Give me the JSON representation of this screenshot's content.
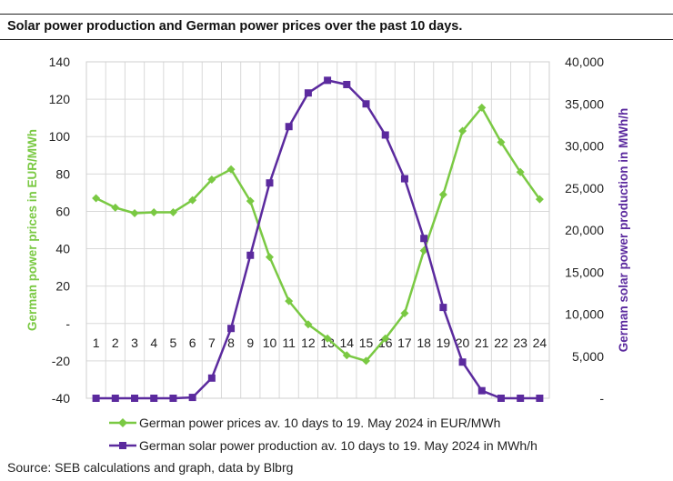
{
  "title": "Solar power production and German power prices over the past 10 days.",
  "source": "Source:  SEB calculations and graph, data by Blbrg",
  "colors": {
    "price": "#7ac943",
    "solar": "#5b2a9e",
    "grid": "#d9d9d9"
  },
  "chart_data": {
    "type": "line",
    "title": "Solar power production and German power prices over the past 10 days.",
    "categories": [
      "1",
      "2",
      "3",
      "4",
      "5",
      "6",
      "7",
      "8",
      "9",
      "10",
      "11",
      "12",
      "13",
      "14",
      "15",
      "16",
      "17",
      "18",
      "19",
      "20",
      "21",
      "22",
      "23",
      "24"
    ],
    "y_left": {
      "label": "German power prices in EUR/MWh",
      "ylim": [
        -40,
        140
      ],
      "ticks": [
        140,
        120,
        100,
        80,
        60,
        40,
        20,
        0,
        -20,
        -40
      ],
      "tick_labels": [
        "140",
        "120",
        "100",
        "80",
        "60",
        "40",
        "20",
        "-",
        "-20",
        "-40"
      ]
    },
    "y_right": {
      "label": "German solar power production in MWh/h",
      "ylim": [
        0,
        40000
      ],
      "ticks": [
        40000,
        35000,
        30000,
        25000,
        20000,
        15000,
        10000,
        5000,
        0
      ],
      "tick_labels": [
        "40,000",
        "35,000",
        "30,000",
        "25,000",
        "20,000",
        "15,000",
        "10,000",
        "5,000",
        "-"
      ]
    },
    "series": [
      {
        "name": "German power prices av. 10 days to 19. May 2024 in EUR/MWh",
        "axis": "left",
        "color": "#7ac943",
        "marker": "diamond",
        "values": [
          67,
          62,
          59,
          59.5,
          59.5,
          66,
          77,
          82.5,
          65.5,
          35.5,
          12,
          -0.5,
          -8,
          -17,
          -20,
          -8,
          5.5,
          39,
          69,
          103,
          115.5,
          97,
          81,
          66.5
        ]
      },
      {
        "name": "German solar power production av. 10 days to 19. May 2024 in MWh/h",
        "axis": "right",
        "color": "#5b2a9e",
        "marker": "square",
        "values": [
          0,
          0,
          0,
          0,
          0,
          100,
          2400,
          8300,
          17000,
          25600,
          32300,
          36300,
          37800,
          37300,
          35000,
          31300,
          26100,
          19000,
          10800,
          4300,
          900,
          0,
          0,
          0
        ]
      }
    ],
    "legend": "bottom"
  }
}
